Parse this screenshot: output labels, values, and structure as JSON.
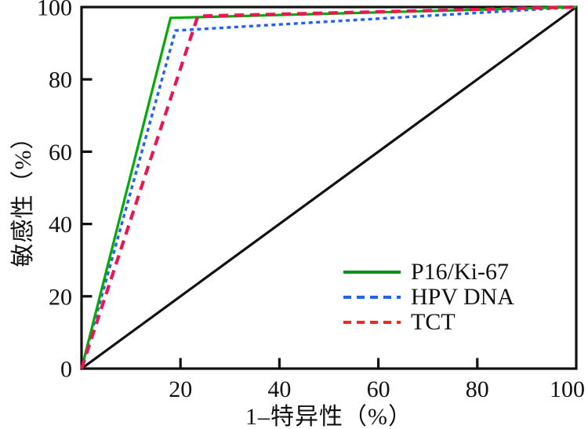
{
  "figure": {
    "background": "#ffffff",
    "text_color": "#111111"
  },
  "chart_data": {
    "type": "line",
    "subtype": "roc-curve",
    "title": "",
    "xlabel": "1–特异性（%）",
    "ylabel": "敏感性（%）",
    "xlim": [
      0,
      100
    ],
    "ylim": [
      0,
      100
    ],
    "x_ticks": [
      20,
      40,
      60,
      80,
      100
    ],
    "y_ticks": [
      0,
      20,
      40,
      60,
      80,
      100
    ],
    "grid": false,
    "frame_color": "#111111",
    "legend_position": "inside-lower-right",
    "series": [
      {
        "name": "reference-diagonal",
        "label": "",
        "color": "#111111",
        "style": "solid",
        "dash": "",
        "width": 3.2,
        "in_legend": false,
        "points": [
          [
            0,
            0
          ],
          [
            100,
            100
          ]
        ]
      },
      {
        "name": "hpv-dna",
        "label": "HPV DNA",
        "color": "#2262f2",
        "style": "dashed",
        "dash": "5,4.5",
        "width": 3.4,
        "in_legend": true,
        "points": [
          [
            0,
            0
          ],
          [
            19,
            93.5
          ],
          [
            100,
            100
          ]
        ]
      },
      {
        "name": "p16-ki67",
        "label": "P16/Ki-67",
        "color": "#00ab06",
        "style": "solid",
        "dash": "",
        "width": 3.2,
        "in_legend": true,
        "points": [
          [
            0,
            0
          ],
          [
            18,
            97
          ],
          [
            100,
            100
          ]
        ]
      },
      {
        "name": "tct",
        "label": "TCT",
        "color": "#ee1452",
        "style": "dashed",
        "dash": "12,8",
        "width": 4.2,
        "in_legend": true,
        "points": [
          [
            0,
            0
          ],
          [
            23.5,
            97.5
          ],
          [
            100,
            100
          ]
        ]
      }
    ],
    "legend": [
      {
        "label": "P16/Ki-67",
        "color": "#0a9020",
        "dash": ""
      },
      {
        "label": "HPV DNA",
        "color": "#2262f2",
        "dash": "10,7"
      },
      {
        "label": "TCT",
        "color": "#f8281b",
        "dash": "10,7"
      }
    ]
  }
}
